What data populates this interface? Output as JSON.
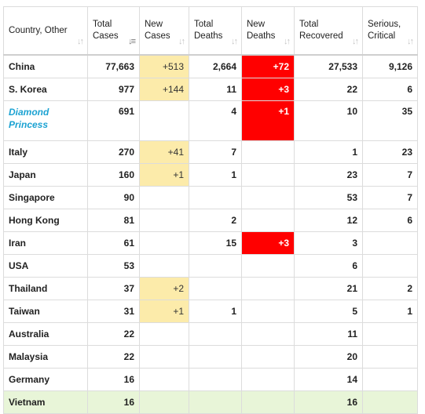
{
  "headers": [
    {
      "label": "Country, Other"
    },
    {
      "label": "Total Cases"
    },
    {
      "label": "New Cases"
    },
    {
      "label": "Total Deaths"
    },
    {
      "label": "New Deaths"
    },
    {
      "label": "Total Recovered"
    },
    {
      "label": "Serious, Critical"
    }
  ],
  "sort_icon": "↓↑",
  "sort_active_icon": "↓≡",
  "rows": [
    {
      "country": "China",
      "total_cases": "77,663",
      "new_cases": "+513",
      "total_deaths": "2,664",
      "new_deaths": "+72",
      "total_recovered": "27,533",
      "serious": "9,126"
    },
    {
      "country": "S. Korea",
      "total_cases": "977",
      "new_cases": "+144",
      "total_deaths": "11",
      "new_deaths": "+3",
      "total_recovered": "22",
      "serious": "6"
    },
    {
      "country": "Diamond Princess",
      "total_cases": "691",
      "new_cases": "",
      "total_deaths": "4",
      "new_deaths": "+1",
      "total_recovered": "10",
      "serious": "35"
    },
    {
      "country": "Italy",
      "total_cases": "270",
      "new_cases": "+41",
      "total_deaths": "7",
      "new_deaths": "",
      "total_recovered": "1",
      "serious": "23"
    },
    {
      "country": "Japan",
      "total_cases": "160",
      "new_cases": "+1",
      "total_deaths": "1",
      "new_deaths": "",
      "total_recovered": "23",
      "serious": "7"
    },
    {
      "country": "Singapore",
      "total_cases": "90",
      "new_cases": "",
      "total_deaths": "",
      "new_deaths": "",
      "total_recovered": "53",
      "serious": "7"
    },
    {
      "country": "Hong Kong",
      "total_cases": "81",
      "new_cases": "",
      "total_deaths": "2",
      "new_deaths": "",
      "total_recovered": "12",
      "serious": "6"
    },
    {
      "country": "Iran",
      "total_cases": "61",
      "new_cases": "",
      "total_deaths": "15",
      "new_deaths": "+3",
      "total_recovered": "3",
      "serious": ""
    },
    {
      "country": "USA",
      "total_cases": "53",
      "new_cases": "",
      "total_deaths": "",
      "new_deaths": "",
      "total_recovered": "6",
      "serious": ""
    },
    {
      "country": "Thailand",
      "total_cases": "37",
      "new_cases": "+2",
      "total_deaths": "",
      "new_deaths": "",
      "total_recovered": "21",
      "serious": "2"
    },
    {
      "country": "Taiwan",
      "total_cases": "31",
      "new_cases": "+1",
      "total_deaths": "1",
      "new_deaths": "",
      "total_recovered": "5",
      "serious": "1"
    },
    {
      "country": "Australia",
      "total_cases": "22",
      "new_cases": "",
      "total_deaths": "",
      "new_deaths": "",
      "total_recovered": "11",
      "serious": ""
    },
    {
      "country": "Malaysia",
      "total_cases": "22",
      "new_cases": "",
      "total_deaths": "",
      "new_deaths": "",
      "total_recovered": "20",
      "serious": ""
    },
    {
      "country": "Germany",
      "total_cases": "16",
      "new_cases": "",
      "total_deaths": "",
      "new_deaths": "",
      "total_recovered": "14",
      "serious": ""
    },
    {
      "country": "Vietnam",
      "total_cases": "16",
      "new_cases": "",
      "total_deaths": "",
      "new_deaths": "",
      "total_recovered": "16",
      "serious": ""
    }
  ],
  "colors": {
    "new_cases_bg": "#fcebaa",
    "new_deaths_bg": "#ff0000",
    "ship_text": "#1ba2d2",
    "highlight_row": "#e8f5d8"
  }
}
